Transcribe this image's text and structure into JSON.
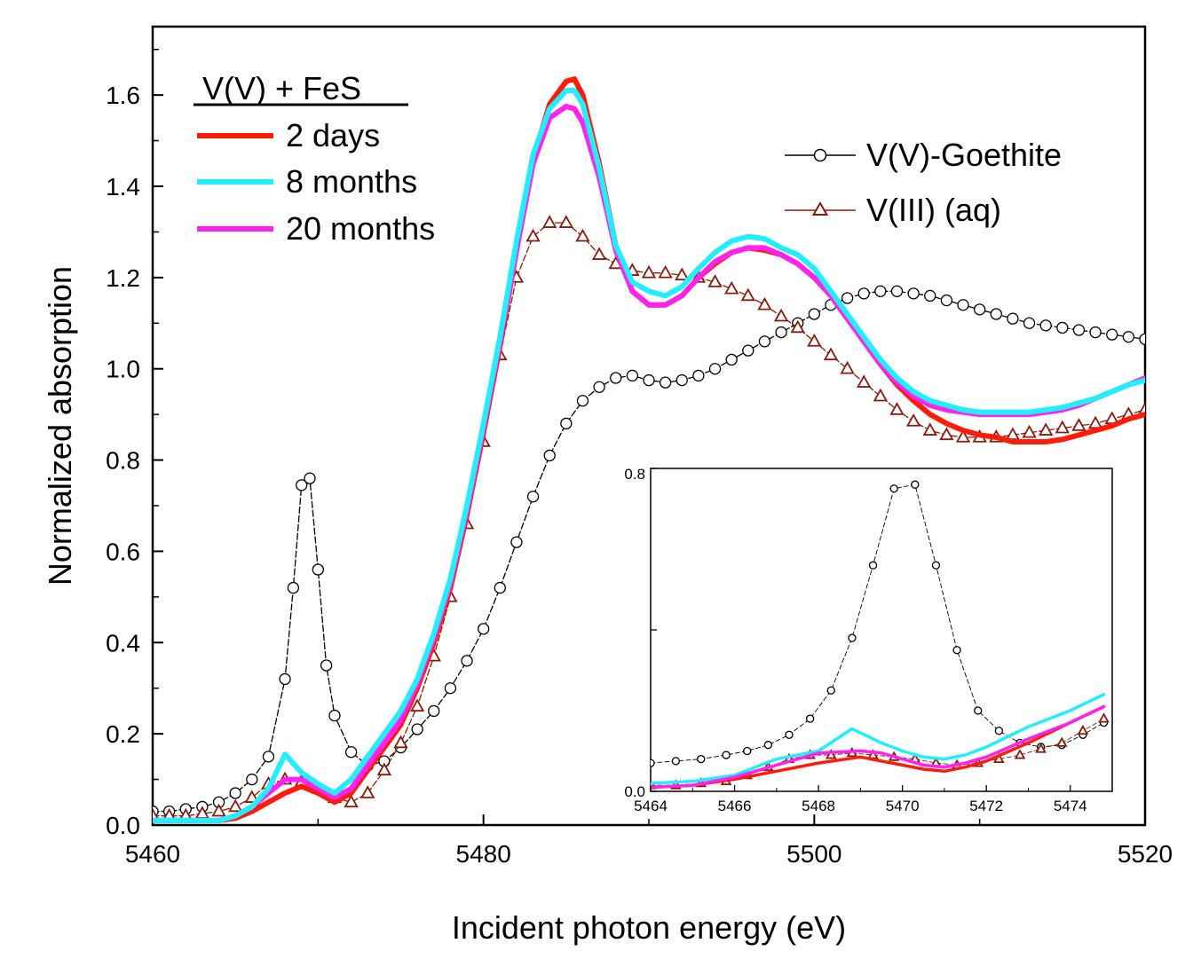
{
  "chart_data": {
    "type": "line",
    "xlabel": "Incident photon energy (eV)",
    "ylabel": "Normalized absorption",
    "xlim": [
      5460,
      5520
    ],
    "ylim": [
      0,
      1.75
    ],
    "xticks": [
      5460,
      5480,
      5500,
      5520
    ],
    "yticks": [
      0.0,
      0.2,
      0.4,
      0.6,
      0.8,
      1.0,
      1.2,
      1.4,
      1.6
    ],
    "legend_title": "V(V) + FeS",
    "series": [
      {
        "name": "2 days",
        "color": "#ff1a0a",
        "style": "line",
        "x": [
          5460,
          5462,
          5464,
          5465,
          5466,
          5467,
          5468,
          5469,
          5470,
          5471,
          5472,
          5473,
          5474,
          5475,
          5476,
          5477,
          5478,
          5479,
          5480,
          5481,
          5482,
          5483,
          5484,
          5485,
          5485.5,
          5486,
          5487,
          5488,
          5489,
          5490,
          5491,
          5492,
          5493,
          5494,
          5495,
          5496,
          5497,
          5498,
          5499,
          5500,
          5501,
          5502,
          5503,
          5504,
          5505,
          5506,
          5507,
          5508,
          5509,
          5510,
          5511,
          5512,
          5513,
          5514,
          5515,
          5516,
          5517,
          5518,
          5519,
          5520
        ],
        "y": [
          0.01,
          0.01,
          0.01,
          0.015,
          0.03,
          0.05,
          0.07,
          0.085,
          0.07,
          0.05,
          0.07,
          0.12,
          0.17,
          0.22,
          0.3,
          0.4,
          0.52,
          0.68,
          0.86,
          1.05,
          1.26,
          1.46,
          1.58,
          1.63,
          1.635,
          1.6,
          1.45,
          1.27,
          1.17,
          1.14,
          1.14,
          1.16,
          1.2,
          1.23,
          1.255,
          1.265,
          1.26,
          1.25,
          1.23,
          1.2,
          1.16,
          1.11,
          1.06,
          1.01,
          0.965,
          0.93,
          0.9,
          0.88,
          0.865,
          0.855,
          0.85,
          0.84,
          0.84,
          0.84,
          0.845,
          0.855,
          0.865,
          0.875,
          0.89,
          0.9
        ]
      },
      {
        "name": "8 months",
        "color": "#22eeff",
        "style": "line",
        "x": [
          5460,
          5462,
          5464,
          5465,
          5466,
          5467,
          5468,
          5469,
          5470,
          5471,
          5472,
          5473,
          5474,
          5475,
          5476,
          5477,
          5478,
          5479,
          5480,
          5481,
          5482,
          5483,
          5484,
          5485,
          5485.5,
          5486,
          5487,
          5488,
          5489,
          5490,
          5491,
          5492,
          5493,
          5494,
          5495,
          5496,
          5497,
          5498,
          5499,
          5500,
          5501,
          5502,
          5503,
          5504,
          5505,
          5506,
          5507,
          5508,
          5509,
          5510,
          5511,
          5512,
          5513,
          5514,
          5515,
          5516,
          5517,
          5518,
          5519,
          5520
        ],
        "y": [
          0.01,
          0.01,
          0.01,
          0.02,
          0.04,
          0.08,
          0.155,
          0.115,
          0.09,
          0.07,
          0.1,
          0.15,
          0.2,
          0.25,
          0.32,
          0.42,
          0.54,
          0.7,
          0.88,
          1.07,
          1.28,
          1.47,
          1.57,
          1.61,
          1.61,
          1.58,
          1.44,
          1.27,
          1.19,
          1.17,
          1.16,
          1.18,
          1.22,
          1.255,
          1.28,
          1.29,
          1.285,
          1.265,
          1.25,
          1.22,
          1.17,
          1.12,
          1.07,
          1.02,
          0.98,
          0.95,
          0.93,
          0.92,
          0.91,
          0.905,
          0.905,
          0.905,
          0.905,
          0.91,
          0.915,
          0.925,
          0.935,
          0.95,
          0.965,
          0.975
        ]
      },
      {
        "name": "20 months",
        "color": "#ff22ee",
        "style": "line",
        "x": [
          5460,
          5462,
          5464,
          5465,
          5466,
          5467,
          5468,
          5469,
          5470,
          5471,
          5472,
          5473,
          5474,
          5475,
          5476,
          5477,
          5478,
          5479,
          5480,
          5481,
          5482,
          5483,
          5484,
          5485,
          5485.5,
          5486,
          5487,
          5488,
          5489,
          5490,
          5491,
          5492,
          5493,
          5494,
          5495,
          5496,
          5497,
          5498,
          5499,
          5500,
          5501,
          5502,
          5503,
          5504,
          5505,
          5506,
          5507,
          5508,
          5509,
          5510,
          5511,
          5512,
          5513,
          5514,
          5515,
          5516,
          5517,
          5518,
          5519,
          5520
        ],
        "y": [
          0.01,
          0.01,
          0.01,
          0.02,
          0.04,
          0.07,
          0.1,
          0.1,
          0.08,
          0.06,
          0.08,
          0.13,
          0.18,
          0.23,
          0.31,
          0.41,
          0.53,
          0.69,
          0.87,
          1.06,
          1.26,
          1.45,
          1.55,
          1.575,
          1.57,
          1.54,
          1.42,
          1.26,
          1.17,
          1.14,
          1.14,
          1.16,
          1.2,
          1.235,
          1.255,
          1.265,
          1.265,
          1.25,
          1.23,
          1.2,
          1.16,
          1.11,
          1.06,
          1.01,
          0.97,
          0.94,
          0.92,
          0.91,
          0.905,
          0.9,
          0.9,
          0.9,
          0.9,
          0.905,
          0.91,
          0.92,
          0.935,
          0.95,
          0.965,
          0.98
        ]
      },
      {
        "name": "V(V)-Goethite",
        "color": "#000000",
        "style": "circle",
        "x": [
          5460,
          5461,
          5462,
          5463,
          5464,
          5465,
          5466,
          5467,
          5468,
          5468.5,
          5469,
          5469.5,
          5470,
          5470.5,
          5471,
          5472,
          5473,
          5474,
          5475,
          5476,
          5477,
          5478,
          5479,
          5480,
          5481,
          5482,
          5483,
          5484,
          5485,
          5486,
          5487,
          5488,
          5489,
          5490,
          5491,
          5492,
          5493,
          5494,
          5495,
          5496,
          5497,
          5498,
          5499,
          5500,
          5501,
          5502,
          5503,
          5504,
          5505,
          5506,
          5507,
          5508,
          5509,
          5510,
          5511,
          5512,
          5513,
          5514,
          5515,
          5516,
          5517,
          5518,
          5519,
          5520
        ],
        "y": [
          0.03,
          0.03,
          0.035,
          0.04,
          0.05,
          0.07,
          0.1,
          0.15,
          0.32,
          0.52,
          0.745,
          0.76,
          0.56,
          0.35,
          0.24,
          0.16,
          0.13,
          0.14,
          0.17,
          0.21,
          0.25,
          0.3,
          0.36,
          0.43,
          0.52,
          0.62,
          0.72,
          0.81,
          0.88,
          0.93,
          0.96,
          0.98,
          0.985,
          0.975,
          0.97,
          0.975,
          0.985,
          1.0,
          1.02,
          1.04,
          1.06,
          1.08,
          1.1,
          1.12,
          1.14,
          1.155,
          1.165,
          1.17,
          1.17,
          1.165,
          1.16,
          1.15,
          1.14,
          1.13,
          1.12,
          1.11,
          1.1,
          1.095,
          1.09,
          1.085,
          1.08,
          1.075,
          1.07,
          1.065
        ]
      },
      {
        "name": "V(III) (aq)",
        "color": "#8b1a0a",
        "style": "triangle",
        "x": [
          5460,
          5461,
          5462,
          5463,
          5464,
          5465,
          5466,
          5467,
          5468,
          5469,
          5470,
          5471,
          5472,
          5473,
          5474,
          5475,
          5476,
          5477,
          5478,
          5479,
          5480,
          5481,
          5482,
          5483,
          5484,
          5485,
          5486,
          5487,
          5488,
          5489,
          5490,
          5491,
          5492,
          5493,
          5494,
          5495,
          5496,
          5497,
          5498,
          5499,
          5500,
          5501,
          5502,
          5503,
          5504,
          5505,
          5506,
          5507,
          5508,
          5509,
          5510,
          5511,
          5512,
          5513,
          5514,
          5515,
          5516,
          5517,
          5518,
          5519,
          5520
        ],
        "y": [
          0.02,
          0.02,
          0.02,
          0.025,
          0.03,
          0.04,
          0.06,
          0.09,
          0.1,
          0.095,
          0.08,
          0.06,
          0.05,
          0.07,
          0.12,
          0.18,
          0.26,
          0.37,
          0.5,
          0.66,
          0.84,
          1.03,
          1.2,
          1.29,
          1.32,
          1.32,
          1.29,
          1.25,
          1.23,
          1.215,
          1.21,
          1.21,
          1.205,
          1.2,
          1.19,
          1.175,
          1.16,
          1.14,
          1.115,
          1.09,
          1.06,
          1.03,
          1.0,
          0.97,
          0.94,
          0.91,
          0.885,
          0.865,
          0.855,
          0.85,
          0.85,
          0.85,
          0.855,
          0.86,
          0.865,
          0.87,
          0.875,
          0.88,
          0.89,
          0.9,
          0.91
        ]
      }
    ],
    "inset": {
      "xlim": [
        5464,
        5475
      ],
      "ylim": [
        0,
        0.8
      ],
      "xticks": [
        5464,
        5466,
        5468,
        5470,
        5472,
        5474
      ],
      "ytick_labels": [
        "0.0",
        "0.8"
      ],
      "series": [
        {
          "name": "V(V)-Goethite",
          "color": "#000000",
          "style": "circle",
          "x": [
            5464,
            5464.6,
            5465.2,
            5465.8,
            5466.3,
            5466.8,
            5467.3,
            5467.8,
            5468.3,
            5468.8,
            5469.3,
            5469.8,
            5470.3,
            5470.8,
            5471.3,
            5471.8,
            5472.3,
            5472.8,
            5473.3,
            5473.8,
            5474.3,
            5474.8
          ],
          "y": [
            0.07,
            0.075,
            0.08,
            0.09,
            0.1,
            0.115,
            0.14,
            0.18,
            0.25,
            0.38,
            0.56,
            0.75,
            0.76,
            0.56,
            0.35,
            0.2,
            0.15,
            0.12,
            0.11,
            0.115,
            0.14,
            0.17
          ]
        },
        {
          "name": "V(III) (aq)",
          "color": "#8b1a0a",
          "style": "triangle",
          "x": [
            5464,
            5464.6,
            5465.2,
            5465.8,
            5466.3,
            5466.8,
            5467.3,
            5467.8,
            5468.3,
            5468.8,
            5469.3,
            5469.8,
            5470.3,
            5470.8,
            5471.3,
            5471.8,
            5472.3,
            5472.8,
            5473.3,
            5473.8,
            5474.3,
            5474.8
          ],
          "y": [
            0.015,
            0.015,
            0.02,
            0.025,
            0.04,
            0.06,
            0.08,
            0.09,
            0.09,
            0.095,
            0.09,
            0.085,
            0.08,
            0.07,
            0.065,
            0.07,
            0.08,
            0.09,
            0.105,
            0.12,
            0.15,
            0.18
          ]
        },
        {
          "name": "2 days",
          "color": "#ff1a0a",
          "style": "line",
          "x": [
            5464,
            5465,
            5466,
            5467,
            5468,
            5469,
            5469.5,
            5470,
            5470.5,
            5471,
            5471.5,
            5472,
            5473,
            5474,
            5474.8
          ],
          "y": [
            0.01,
            0.015,
            0.03,
            0.05,
            0.07,
            0.085,
            0.075,
            0.065,
            0.055,
            0.05,
            0.06,
            0.075,
            0.12,
            0.17,
            0.21
          ]
        },
        {
          "name": "8 months",
          "color": "#22eeff",
          "style": "line",
          "x": [
            5464,
            5465,
            5466,
            5467,
            5468,
            5468.8,
            5469.5,
            5470,
            5470.5,
            5471,
            5471.5,
            5472,
            5473,
            5474,
            5474.8
          ],
          "y": [
            0.02,
            0.025,
            0.04,
            0.08,
            0.1,
            0.155,
            0.12,
            0.1,
            0.085,
            0.08,
            0.09,
            0.11,
            0.16,
            0.2,
            0.24
          ]
        },
        {
          "name": "20 months",
          "color": "#ff22ee",
          "style": "line",
          "x": [
            5464,
            5465,
            5466,
            5467,
            5468,
            5469,
            5469.5,
            5470,
            5470.5,
            5471,
            5471.5,
            5472,
            5473,
            5474,
            5474.8
          ],
          "y": [
            0.01,
            0.015,
            0.035,
            0.065,
            0.095,
            0.1,
            0.095,
            0.08,
            0.065,
            0.06,
            0.07,
            0.085,
            0.13,
            0.17,
            0.21
          ]
        }
      ]
    }
  }
}
